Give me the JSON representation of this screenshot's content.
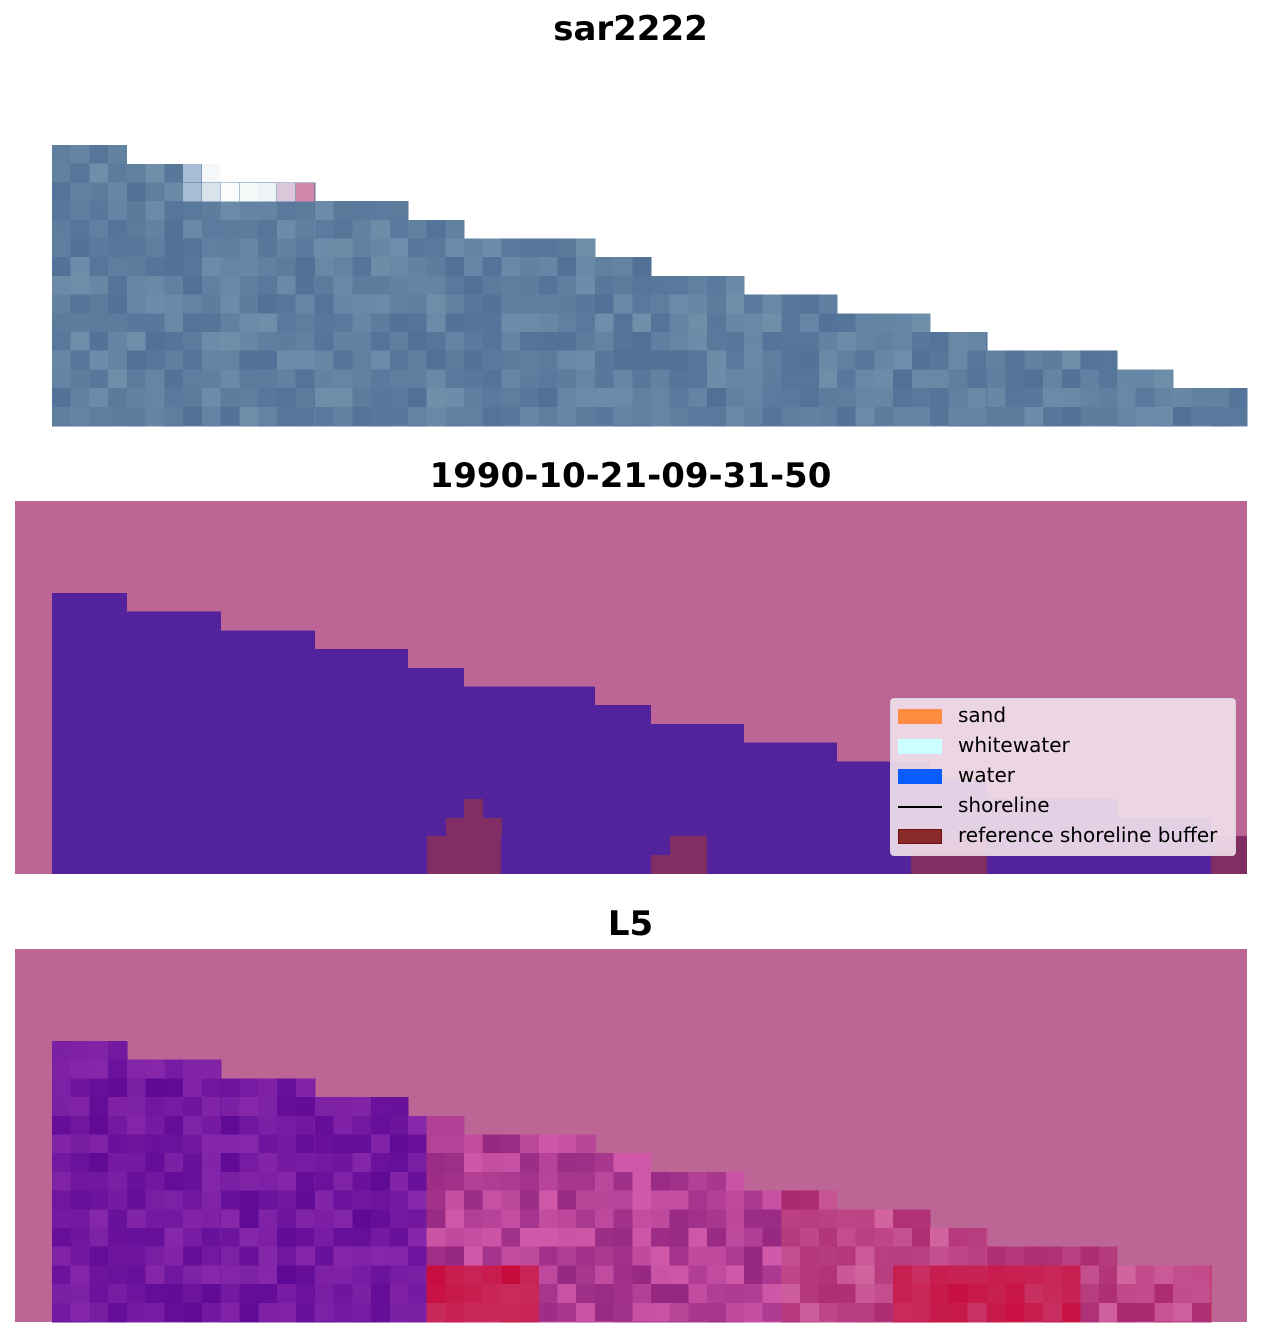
{
  "titles": {
    "top": "sar2222",
    "middle": "1990-10-21-09-31-50",
    "bottom": "L5"
  },
  "legend": {
    "items": [
      {
        "label": "sand",
        "kind": "patch",
        "color": "#ff8c40"
      },
      {
        "label": "whitewater",
        "kind": "patch",
        "color": "#ccffff"
      },
      {
        "label": "water",
        "kind": "patch",
        "color": "#0a5cff"
      },
      {
        "label": "shoreline",
        "kind": "line",
        "color": "#000000"
      },
      {
        "label": "reference shoreline buffer",
        "kind": "patch",
        "color": "#8b1a1a"
      }
    ]
  },
  "colors": {
    "background_mask": "#bd6696",
    "water_class": "#52239a",
    "buffer": "#802e64"
  }
}
